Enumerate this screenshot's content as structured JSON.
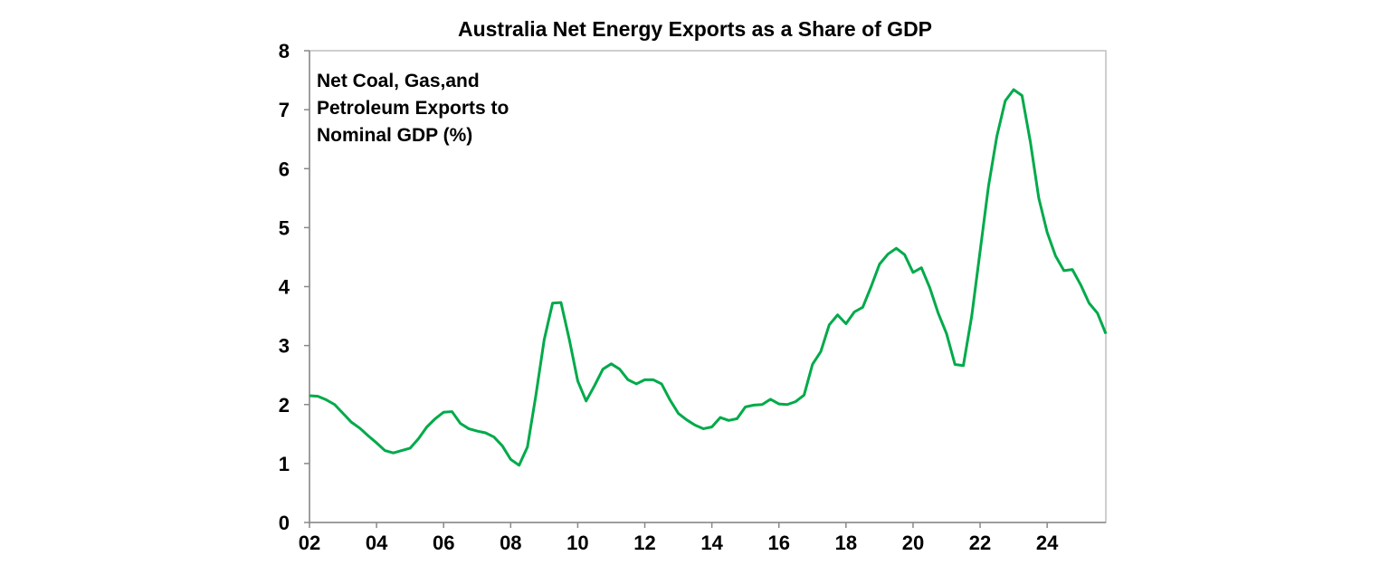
{
  "chart_data": {
    "type": "line",
    "title": "Australia Net Energy Exports as a Share of GDP",
    "annotation": [
      "Net Coal, Gas,and",
      "Petroleum Exports to",
      "Nominal GDP (%)"
    ],
    "xlabel": "",
    "ylabel": "",
    "ylim": [
      0,
      8
    ],
    "xlim": [
      2002,
      2025.75
    ],
    "yticks": [
      "0",
      "1",
      "2",
      "3",
      "4",
      "5",
      "6",
      "7",
      "8"
    ],
    "xticks": [
      {
        "x": 2002,
        "label": "02"
      },
      {
        "x": 2004,
        "label": "04"
      },
      {
        "x": 2006,
        "label": "06"
      },
      {
        "x": 2008,
        "label": "08"
      },
      {
        "x": 2010,
        "label": "10"
      },
      {
        "x": 2012,
        "label": "12"
      },
      {
        "x": 2014,
        "label": "14"
      },
      {
        "x": 2016,
        "label": "16"
      },
      {
        "x": 2018,
        "label": "18"
      },
      {
        "x": 2020,
        "label": "20"
      },
      {
        "x": 2022,
        "label": "22"
      },
      {
        "x": 2024,
        "label": "24"
      }
    ],
    "grid": false,
    "line_color": "#00AA4A",
    "x_start": 2002,
    "x_step": 0.25,
    "values": [
      2.15,
      2.14,
      2.08,
      2.0,
      1.85,
      1.7,
      1.6,
      1.47,
      1.35,
      1.22,
      1.18,
      1.22,
      1.26,
      1.42,
      1.62,
      1.76,
      1.87,
      1.88,
      1.68,
      1.59,
      1.55,
      1.52,
      1.45,
      1.3,
      1.07,
      0.97,
      1.28,
      2.15,
      3.1,
      3.72,
      3.73,
      3.1,
      2.4,
      2.06,
      2.32,
      2.6,
      2.69,
      2.6,
      2.42,
      2.35,
      2.42,
      2.42,
      2.35,
      2.08,
      1.85,
      1.74,
      1.65,
      1.59,
      1.62,
      1.78,
      1.73,
      1.76,
      1.96,
      1.99,
      2.0,
      2.09,
      2.01,
      2.0,
      2.05,
      2.16,
      2.68,
      2.9,
      3.35,
      3.52,
      3.37,
      3.57,
      3.65,
      4.0,
      4.38,
      4.55,
      4.65,
      4.54,
      4.24,
      4.32,
      3.98,
      3.55,
      3.2,
      2.68,
      2.66,
      3.5,
      4.6,
      5.7,
      6.55,
      7.15,
      7.34,
      7.24,
      6.45,
      5.5,
      4.92,
      4.52,
      4.27,
      4.29,
      4.03,
      3.72,
      3.55,
      3.2
    ]
  }
}
